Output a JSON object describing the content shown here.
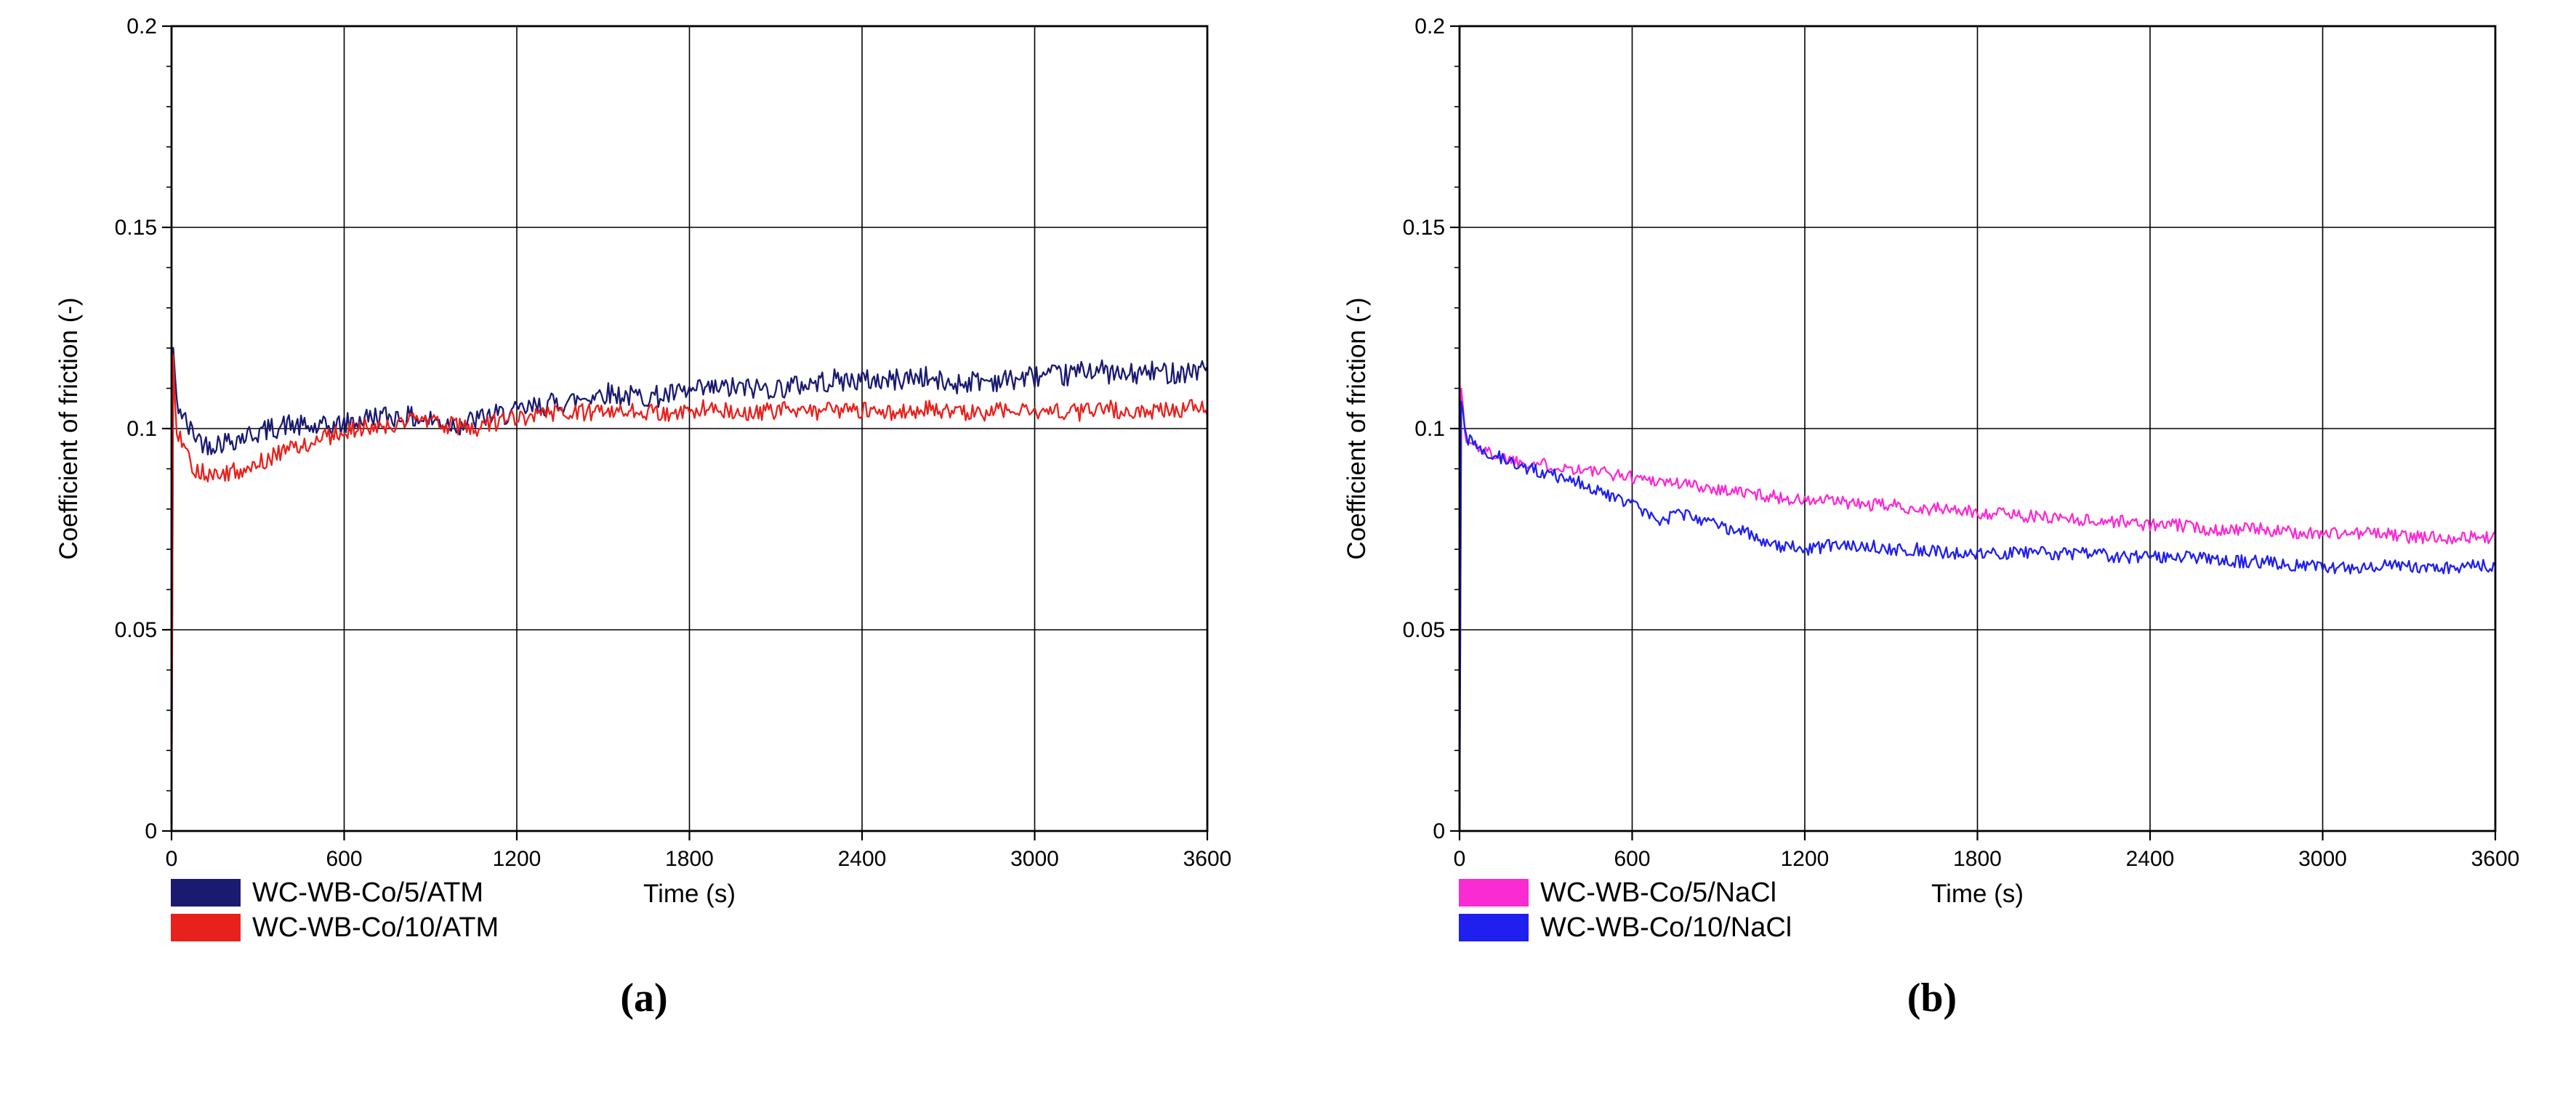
{
  "page": {
    "background": "#ffffff"
  },
  "panels": [
    {
      "caption": "(a)"
    },
    {
      "caption": "(b)"
    }
  ],
  "chart_data": [
    {
      "type": "line",
      "title": "",
      "xlabel": "Time (s)",
      "ylabel": "Coefficient of friction (-)",
      "xlim": [
        0,
        3600
      ],
      "ylim": [
        0,
        0.2
      ],
      "xtick_values": [
        0,
        600,
        1200,
        1800,
        2400,
        3000,
        3600
      ],
      "xtick_labels": [
        "0",
        "600",
        "1200",
        "1800",
        "2400",
        "3000",
        "3600"
      ],
      "ytick_values": [
        0,
        0.05,
        0.1,
        0.15,
        0.2
      ],
      "ytick_labels": [
        "0",
        "0.05",
        "0.1",
        "0.15",
        "0.2"
      ],
      "y_minor_step": 0.01,
      "grid": true,
      "legend_position": "bottom-left",
      "axis_color": "#000000",
      "series": [
        {
          "name": "WC-WB-Co/5/ATM",
          "color": "#1a1a70",
          "noise": 0.0028,
          "points": [
            [
              0,
              0.002
            ],
            [
              4,
              0.123
            ],
            [
              15,
              0.107
            ],
            [
              60,
              0.1
            ],
            [
              120,
              0.096
            ],
            [
              200,
              0.097
            ],
            [
              300,
              0.099
            ],
            [
              400,
              0.101
            ],
            [
              500,
              0.1
            ],
            [
              600,
              0.101
            ],
            [
              700,
              0.103
            ],
            [
              800,
              0.103
            ],
            [
              900,
              0.102
            ],
            [
              1000,
              0.101
            ],
            [
              1100,
              0.103
            ],
            [
              1200,
              0.104
            ],
            [
              1300,
              0.106
            ],
            [
              1400,
              0.107
            ],
            [
              1500,
              0.109
            ],
            [
              1600,
              0.108
            ],
            [
              1700,
              0.108
            ],
            [
              1800,
              0.109
            ],
            [
              1900,
              0.11
            ],
            [
              2000,
              0.11
            ],
            [
              2100,
              0.11
            ],
            [
              2200,
              0.111
            ],
            [
              2300,
              0.112
            ],
            [
              2400,
              0.112
            ],
            [
              2500,
              0.112
            ],
            [
              2600,
              0.113
            ],
            [
              2700,
              0.111
            ],
            [
              2800,
              0.112
            ],
            [
              2900,
              0.112
            ],
            [
              3000,
              0.113
            ],
            [
              3100,
              0.113
            ],
            [
              3200,
              0.115
            ],
            [
              3300,
              0.113
            ],
            [
              3400,
              0.114
            ],
            [
              3500,
              0.114
            ],
            [
              3600,
              0.115
            ]
          ]
        },
        {
          "name": "WC-WB-Co/10/ATM",
          "color": "#e8211d",
          "noise": 0.0022,
          "points": [
            [
              0,
              0.002
            ],
            [
              4,
              0.122
            ],
            [
              15,
              0.1
            ],
            [
              80,
              0.09
            ],
            [
              150,
              0.088
            ],
            [
              250,
              0.09
            ],
            [
              350,
              0.093
            ],
            [
              450,
              0.096
            ],
            [
              550,
              0.098
            ],
            [
              650,
              0.1
            ],
            [
              750,
              0.101
            ],
            [
              850,
              0.102
            ],
            [
              950,
              0.101
            ],
            [
              1050,
              0.1
            ],
            [
              1150,
              0.102
            ],
            [
              1250,
              0.103
            ],
            [
              1350,
              0.104
            ],
            [
              1450,
              0.104
            ],
            [
              1550,
              0.104
            ],
            [
              1650,
              0.104
            ],
            [
              1750,
              0.104
            ],
            [
              1850,
              0.105
            ],
            [
              1950,
              0.104
            ],
            [
              2050,
              0.104
            ],
            [
              2150,
              0.105
            ],
            [
              2250,
              0.104
            ],
            [
              2350,
              0.105
            ],
            [
              2450,
              0.104
            ],
            [
              2550,
              0.104
            ],
            [
              2650,
              0.105
            ],
            [
              2750,
              0.104
            ],
            [
              2850,
              0.104
            ],
            [
              2950,
              0.105
            ],
            [
              3050,
              0.104
            ],
            [
              3150,
              0.104
            ],
            [
              3250,
              0.105
            ],
            [
              3350,
              0.104
            ],
            [
              3450,
              0.105
            ],
            [
              3600,
              0.105
            ]
          ]
        }
      ]
    },
    {
      "type": "line",
      "title": "",
      "xlabel": "Time (s)",
      "ylabel": "Coefficient of friction (-)",
      "xlim": [
        0,
        3600
      ],
      "ylim": [
        0,
        0.2
      ],
      "xtick_values": [
        0,
        600,
        1200,
        1800,
        2400,
        3000,
        3600
      ],
      "xtick_labels": [
        "0",
        "600",
        "1200",
        "1800",
        "2400",
        "3000",
        "3600"
      ],
      "ytick_values": [
        0,
        0.05,
        0.1,
        0.15,
        0.2
      ],
      "ytick_labels": [
        "0",
        "0.05",
        "0.1",
        "0.15",
        "0.2"
      ],
      "y_minor_step": 0.01,
      "grid": true,
      "legend_position": "bottom-left",
      "axis_color": "#000000",
      "series": [
        {
          "name": "WC-WB-Co/5/NaCl",
          "color": "#fb2bd3",
          "noise": 0.0016,
          "points": [
            [
              0,
              0.002
            ],
            [
              4,
              0.112
            ],
            [
              20,
              0.097
            ],
            [
              100,
              0.094
            ],
            [
              200,
              0.092
            ],
            [
              300,
              0.091
            ],
            [
              400,
              0.09
            ],
            [
              500,
              0.089
            ],
            [
              600,
              0.088
            ],
            [
              700,
              0.087
            ],
            [
              800,
              0.086
            ],
            [
              900,
              0.085
            ],
            [
              1000,
              0.084
            ],
            [
              1100,
              0.083
            ],
            [
              1200,
              0.082
            ],
            [
              1300,
              0.082
            ],
            [
              1400,
              0.081
            ],
            [
              1500,
              0.081
            ],
            [
              1600,
              0.08
            ],
            [
              1700,
              0.08
            ],
            [
              1800,
              0.079
            ],
            [
              1900,
              0.079
            ],
            [
              2000,
              0.078
            ],
            [
              2100,
              0.078
            ],
            [
              2200,
              0.077
            ],
            [
              2300,
              0.077
            ],
            [
              2400,
              0.076
            ],
            [
              2500,
              0.076
            ],
            [
              2600,
              0.075
            ],
            [
              2700,
              0.075
            ],
            [
              2800,
              0.075
            ],
            [
              2900,
              0.074
            ],
            [
              3000,
              0.074
            ],
            [
              3100,
              0.074
            ],
            [
              3200,
              0.074
            ],
            [
              3300,
              0.073
            ],
            [
              3400,
              0.073
            ],
            [
              3500,
              0.073
            ],
            [
              3600,
              0.073
            ]
          ]
        },
        {
          "name": "WC-WB-Co/10/NaCl",
          "color": "#2020ee",
          "noise": 0.0016,
          "points": [
            [
              0,
              0.002
            ],
            [
              4,
              0.108
            ],
            [
              20,
              0.098
            ],
            [
              100,
              0.094
            ],
            [
              200,
              0.091
            ],
            [
              300,
              0.089
            ],
            [
              400,
              0.087
            ],
            [
              500,
              0.084
            ],
            [
              600,
              0.081
            ],
            [
              650,
              0.079
            ],
            [
              700,
              0.076
            ],
            [
              750,
              0.079
            ],
            [
              800,
              0.078
            ],
            [
              900,
              0.076
            ],
            [
              1000,
              0.074
            ],
            [
              1100,
              0.071
            ],
            [
              1200,
              0.07
            ],
            [
              1300,
              0.071
            ],
            [
              1400,
              0.071
            ],
            [
              1500,
              0.07
            ],
            [
              1600,
              0.07
            ],
            [
              1700,
              0.069
            ],
            [
              1800,
              0.069
            ],
            [
              1900,
              0.069
            ],
            [
              2000,
              0.069
            ],
            [
              2100,
              0.069
            ],
            [
              2200,
              0.069
            ],
            [
              2300,
              0.068
            ],
            [
              2400,
              0.068
            ],
            [
              2500,
              0.068
            ],
            [
              2600,
              0.068
            ],
            [
              2700,
              0.067
            ],
            [
              2800,
              0.067
            ],
            [
              2900,
              0.066
            ],
            [
              3000,
              0.066
            ],
            [
              3100,
              0.065
            ],
            [
              3200,
              0.066
            ],
            [
              3300,
              0.066
            ],
            [
              3400,
              0.065
            ],
            [
              3500,
              0.066
            ],
            [
              3600,
              0.066
            ]
          ]
        }
      ]
    }
  ]
}
